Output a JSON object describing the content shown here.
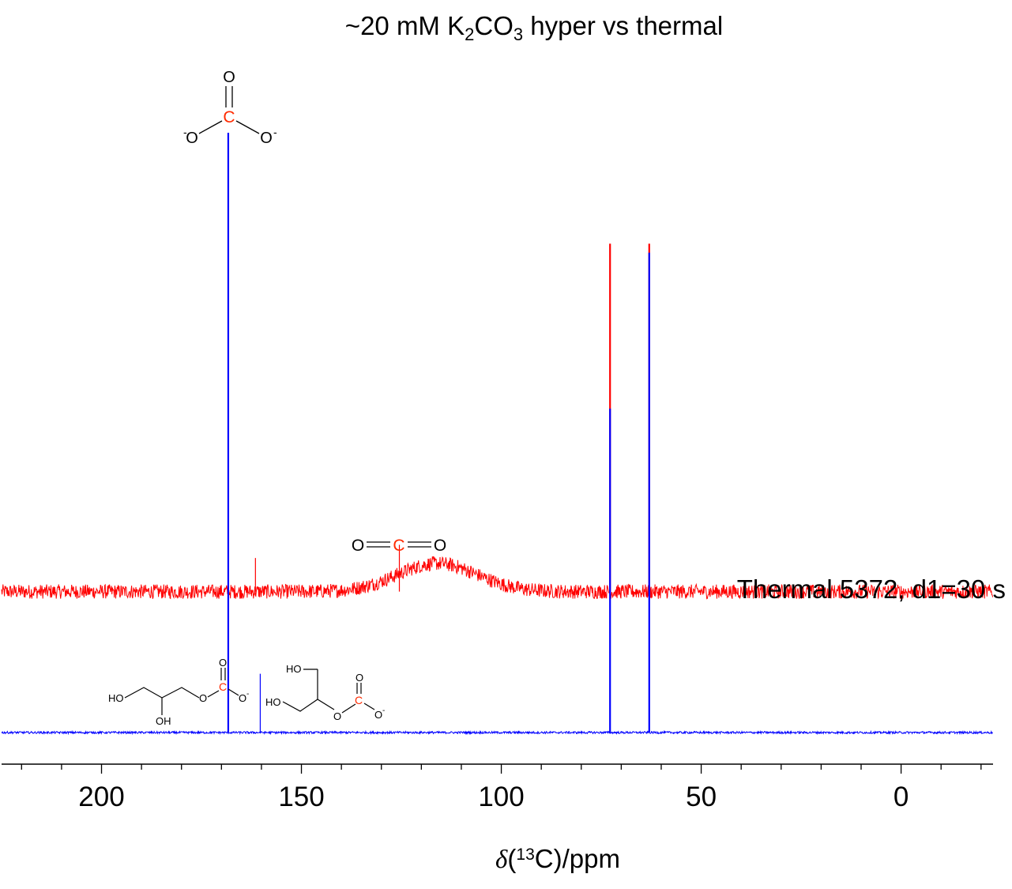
{
  "chart_data": {
    "type": "line",
    "title": {
      "prefix": "~20 mM K",
      "sub1": "2",
      "mid": "CO",
      "sub2": "3",
      "suffix": " hyper vs thermal"
    },
    "xlabel": {
      "delta": "δ",
      "open": "(",
      "sup": "13",
      "rest": "C)/ppm"
    },
    "x_reversed": true,
    "xlim": [
      225,
      -23
    ],
    "x_ticks": [
      200,
      150,
      100,
      50,
      0
    ],
    "x_tick_labels": [
      "200",
      "150",
      "100",
      "50",
      "0"
    ],
    "series": [
      {
        "name": "Thermal 5372, d1=30 s",
        "color": "#ff0000",
        "baseline": 0.235,
        "noise": 0.012,
        "broad_peaks": [
          {
            "center": 116,
            "height": 0.047,
            "width": 14
          }
        ],
        "peaks": [
          {
            "ppm": 161.5,
            "height": 0.056
          },
          {
            "ppm": 125.5,
            "height": 0.078
          },
          {
            "ppm": 72.8,
            "height": 0.58
          },
          {
            "ppm": 63.0,
            "height": 0.58
          }
        ]
      },
      {
        "name": "hyper",
        "color": "#0000ff",
        "baseline": 0.0,
        "noise": 0.0018,
        "peaks": [
          {
            "ppm": 168.3,
            "height": 1.0
          },
          {
            "ppm": 160.3,
            "height": 0.098
          },
          {
            "ppm": 72.8,
            "height": 0.54
          },
          {
            "ppm": 63.0,
            "height": 0.8
          }
        ]
      }
    ],
    "legend_text": "Thermal 5372, d1=30 s"
  },
  "structures": {
    "carbonate": {
      "o_top": "O",
      "c": "C",
      "o_left": "O",
      "o_right": "O",
      "neg": "-"
    },
    "co2": {
      "o1": "O",
      "c": "C",
      "o2": "O"
    },
    "glycerol_1_carbonate": {
      "ho": "HO",
      "oh": "OH",
      "o_link": "O",
      "c": "C",
      "o_top": "O",
      "o_neg": "O",
      "neg": "-"
    },
    "glycerol_2_carbonate": {
      "ho1": "HO",
      "ho2": "HO",
      "o_link": "O",
      "c": "C",
      "o_top": "O",
      "o_neg": "O",
      "neg": "-"
    }
  },
  "colors": {
    "red": "#ff0000",
    "blue": "#0000ff",
    "axis": "#000000"
  }
}
